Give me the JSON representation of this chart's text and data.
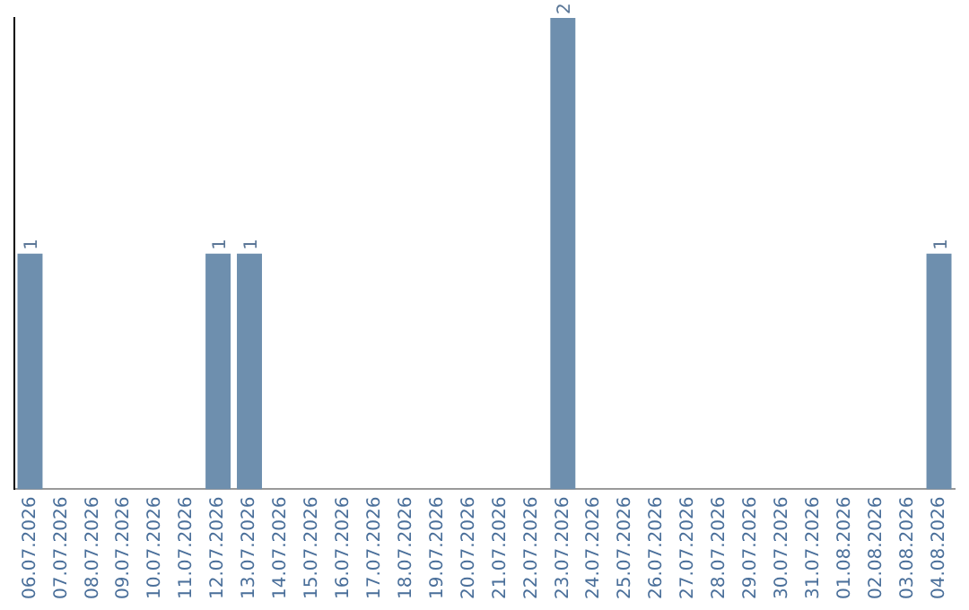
{
  "chart_data": {
    "type": "bar",
    "categories": [
      "06.07.2026",
      "07.07.2026",
      "08.07.2026",
      "09.07.2026",
      "10.07.2026",
      "11.07.2026",
      "12.07.2026",
      "13.07.2026",
      "14.07.2026",
      "15.07.2026",
      "16.07.2026",
      "17.07.2026",
      "18.07.2026",
      "19.07.2026",
      "20.07.2026",
      "21.07.2026",
      "22.07.2026",
      "23.07.2026",
      "24.07.2026",
      "25.07.2026",
      "26.07.2026",
      "27.07.2026",
      "28.07.2026",
      "29.07.2026",
      "30.07.2026",
      "31.07.2026",
      "01.08.2026",
      "02.08.2026",
      "03.08.2026",
      "04.08.2026"
    ],
    "values": [
      1,
      0,
      0,
      0,
      0,
      0,
      1,
      1,
      0,
      0,
      0,
      0,
      0,
      0,
      0,
      0,
      0,
      2,
      0,
      0,
      0,
      0,
      0,
      0,
      0,
      0,
      0,
      0,
      0,
      1
    ],
    "value_labels": [
      "1",
      null,
      null,
      null,
      null,
      null,
      "1",
      "1",
      null,
      null,
      null,
      null,
      null,
      null,
      null,
      null,
      null,
      "2",
      null,
      null,
      null,
      null,
      null,
      null,
      null,
      null,
      null,
      null,
      null,
      "1"
    ],
    "color": "#6e8fae",
    "tick_labels": "x",
    "grid": false,
    "legend": false
  }
}
